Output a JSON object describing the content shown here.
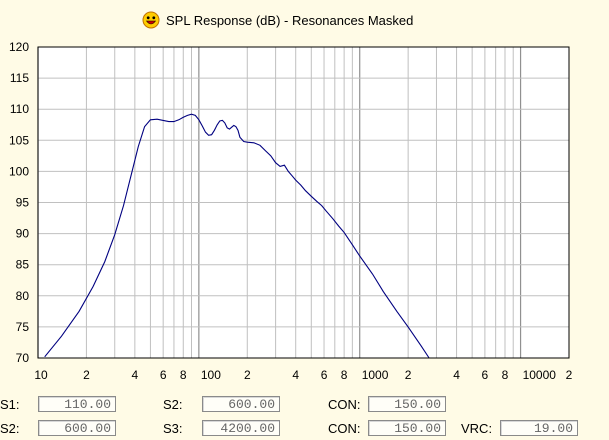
{
  "window": {
    "title": "SPL Response (dB) - Resonances Masked",
    "icon": "smiley-face-icon"
  },
  "chart_data": {
    "type": "line",
    "title": "SPL Response (dB) - Resonances Masked",
    "xlabel": "",
    "ylabel": "",
    "xscale": "log",
    "xlim": [
      10,
      20000
    ],
    "ylim": [
      70,
      120
    ],
    "grid": true,
    "y_ticks": [
      "70",
      "75",
      "80",
      "85",
      "90",
      "95",
      "100",
      "105",
      "110",
      "115",
      "120"
    ],
    "x_tick_labels": [
      {
        "value": 10,
        "label": "10"
      },
      {
        "value": 20,
        "label": "2"
      },
      {
        "value": 40,
        "label": "4"
      },
      {
        "value": 60,
        "label": "6"
      },
      {
        "value": 80,
        "label": "8"
      },
      {
        "value": 100,
        "label": "100"
      },
      {
        "value": 200,
        "label": "2"
      },
      {
        "value": 400,
        "label": "4"
      },
      {
        "value": 600,
        "label": "6"
      },
      {
        "value": 800,
        "label": "8"
      },
      {
        "value": 1000,
        "label": "1000"
      },
      {
        "value": 2000,
        "label": "2"
      },
      {
        "value": 4000,
        "label": "4"
      },
      {
        "value": 6000,
        "label": "6"
      },
      {
        "value": 8000,
        "label": "8"
      },
      {
        "value": 10000,
        "label": "10000"
      },
      {
        "value": 20000,
        "label": "2"
      }
    ],
    "series": [
      {
        "color": "#000080",
        "x": [
          11,
          14,
          18,
          22,
          26,
          30,
          34,
          38,
          42,
          46,
          50,
          55,
          60,
          65,
          70,
          75,
          80,
          85,
          90,
          95,
          100,
          105,
          110,
          115,
          120,
          125,
          130,
          135,
          140,
          145,
          150,
          155,
          160,
          165,
          170,
          175,
          180,
          190,
          200,
          220,
          240,
          260,
          280,
          300,
          320,
          340,
          360,
          380,
          400,
          430,
          460,
          500,
          540,
          580,
          620,
          680,
          740,
          800,
          900,
          1000,
          1200,
          1400,
          1700,
          2000,
          2400,
          2700
        ],
        "y": [
          70.2,
          73.5,
          77.5,
          81.5,
          85.5,
          89.8,
          94.5,
          99.5,
          104,
          107.2,
          108.3,
          108.4,
          108.2,
          108.0,
          108.0,
          108.3,
          108.7,
          109.0,
          109.2,
          109.0,
          108.3,
          107.3,
          106.3,
          105.8,
          105.9,
          106.6,
          107.5,
          108.1,
          108.2,
          107.8,
          107.0,
          106.8,
          107.1,
          107.4,
          107.2,
          106.6,
          105.5,
          104.8,
          104.7,
          104.6,
          104.2,
          103.3,
          102.5,
          101.4,
          100.8,
          101.0,
          100.0,
          99.3,
          98.6,
          97.8,
          96.9,
          96.0,
          95.2,
          94.5,
          93.6,
          92.4,
          91.2,
          90.2,
          88.2,
          86.4,
          83.5,
          80.7,
          77.5,
          75.0,
          72.0,
          70.0
        ]
      }
    ]
  },
  "parameters": {
    "row1": [
      {
        "label": "S1:",
        "value": "110.00"
      },
      {
        "label": "S2:",
        "value": "600.00"
      },
      {
        "label": "CON:",
        "value": "150.00"
      }
    ],
    "row2": [
      {
        "label": "S2:",
        "value": "600.00"
      },
      {
        "label": "S3:",
        "value": "4200.00"
      },
      {
        "label": "CON:",
        "value": "150.00"
      },
      {
        "label": "VRC:",
        "value": "19.00"
      }
    ]
  }
}
